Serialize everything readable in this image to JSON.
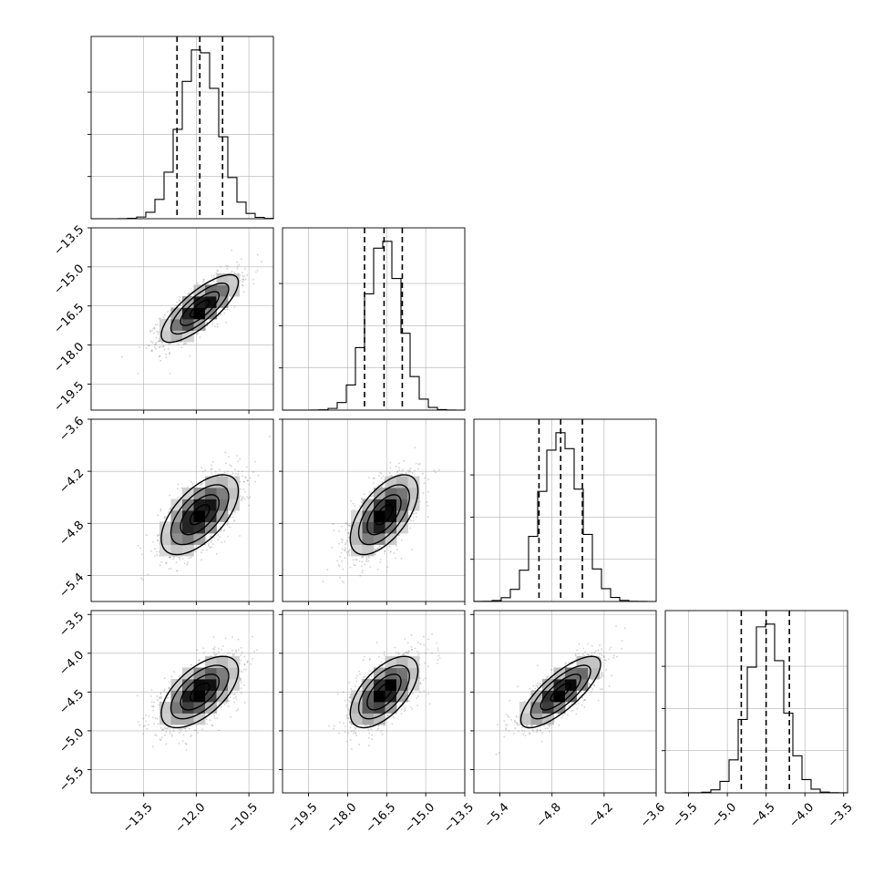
{
  "chart_data": {
    "type": "corner",
    "parameters": [
      {
        "mean": -11.9,
        "sd": 0.55,
        "q16": -12.55,
        "q50": -11.9,
        "q84": -11.25,
        "range": [
          -15.0,
          -9.8
        ],
        "ticks": [
          {
            "value": -13.5,
            "label": "−13.5"
          },
          {
            "value": -12.0,
            "label": "−12.0"
          },
          {
            "value": -10.5,
            "label": "−10.5"
          }
        ]
      },
      {
        "mean": -16.6,
        "sd": 0.65,
        "q16": -17.35,
        "q50": -16.6,
        "q84": -15.9,
        "range": [
          -20.5,
          -13.5
        ],
        "ticks": [
          {
            "value": -19.5,
            "label": "−19.5"
          },
          {
            "value": -18.0,
            "label": "−18.0"
          },
          {
            "value": -16.5,
            "label": "−16.5"
          },
          {
            "value": -15.0,
            "label": "−15.0"
          },
          {
            "value": -13.5,
            "label": "−13.5"
          }
        ]
      },
      {
        "mean": -4.7,
        "sd": 0.23,
        "q16": -4.95,
        "q50": -4.7,
        "q84": -4.45,
        "range": [
          -5.7,
          -3.6
        ],
        "ticks": [
          {
            "value": -5.4,
            "label": "−5.4"
          },
          {
            "value": -4.8,
            "label": "−4.8"
          },
          {
            "value": -4.2,
            "label": "−4.2"
          },
          {
            "value": -3.6,
            "label": "−3.6"
          }
        ]
      },
      {
        "mean": -4.5,
        "sd": 0.23,
        "q16": -4.82,
        "q50": -4.5,
        "q84": -4.2,
        "range": [
          -5.8,
          -3.45
        ],
        "ticks": [
          {
            "value": -5.5,
            "label": "−5.5"
          },
          {
            "value": -5.0,
            "label": "−5.0"
          },
          {
            "value": -4.5,
            "label": "−4.5"
          },
          {
            "value": -4.0,
            "label": "−4.0"
          },
          {
            "value": -3.5,
            "label": "−3.5"
          }
        ]
      }
    ],
    "correlations": {
      "1-0": 0.78,
      "2-0": 0.6,
      "2-1": 0.6,
      "3-0": 0.6,
      "3-1": 0.6,
      "3-2": 0.78
    },
    "histogram_bins": 20,
    "contour_levels_sigma": [
      0.5,
      1.0,
      1.5,
      2.0
    ],
    "grid": true,
    "colors": {
      "frame": "#000000",
      "grid": "#b0b0b0",
      "scatter": "#7a7a7a",
      "density": "#000000"
    }
  }
}
